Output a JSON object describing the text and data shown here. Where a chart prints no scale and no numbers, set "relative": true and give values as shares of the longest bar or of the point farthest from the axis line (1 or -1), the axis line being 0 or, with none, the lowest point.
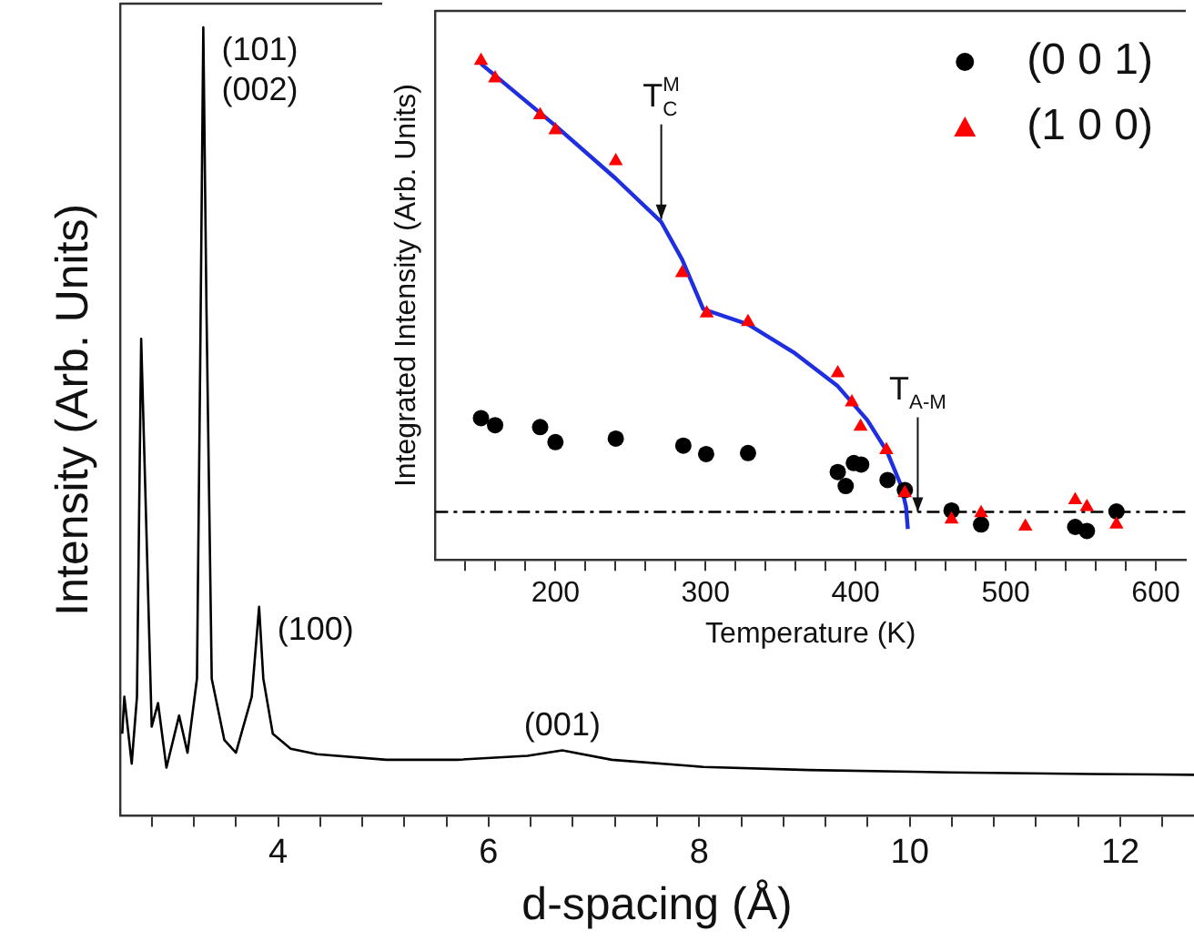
{
  "chart_data": [
    {
      "type": "line",
      "xlabel": "d-spacing (Å)",
      "ylabel": "Intensity (Arb. Units)",
      "relative": true,
      "x": [
        2.52,
        2.54,
        2.61,
        2.66,
        2.7,
        2.74,
        2.8,
        2.86,
        2.94,
        3.06,
        3.14,
        3.23,
        3.26,
        3.29,
        3.32,
        3.37,
        3.49,
        3.6,
        3.75,
        3.82,
        3.86,
        3.95,
        4.12,
        4.37,
        5.03,
        5.7,
        6.37,
        6.7,
        7.17,
        8.04,
        9.04,
        10.38,
        11.71,
        12.7
      ],
      "series": [
        {
          "color": "#000000",
          "values": [
            0.104,
            0.151,
            0.066,
            0.151,
            0.605,
            0.409,
            0.113,
            0.143,
            0.061,
            0.127,
            0.08,
            0.174,
            0.566,
            1.0,
            0.644,
            0.174,
            0.096,
            0.08,
            0.151,
            0.265,
            0.174,
            0.104,
            0.085,
            0.078,
            0.071,
            0.071,
            0.076,
            0.083,
            0.071,
            0.062,
            0.058,
            0.055,
            0.053,
            0.052
          ]
        }
      ],
      "xlim": [
        2.5,
        12.7
      ],
      "xticks": [
        {
          "value": 2.8,
          "label": null
        },
        {
          "value": 3.2,
          "label": null
        },
        {
          "value": 3.6,
          "label": null
        },
        4,
        {
          "value": 4.4,
          "label": null
        },
        {
          "value": 4.8,
          "label": null
        },
        {
          "value": 5.2,
          "label": null
        },
        {
          "value": 5.6,
          "label": null
        },
        6,
        {
          "value": 6.4,
          "label": null
        },
        {
          "value": 6.8,
          "label": null
        },
        {
          "value": 7.2,
          "label": null
        },
        {
          "value": 7.6,
          "label": null
        },
        8,
        {
          "value": 8.4,
          "label": null
        },
        {
          "value": 8.8,
          "label": null
        },
        {
          "value": 9.2,
          "label": null
        },
        {
          "value": 9.6,
          "label": null
        },
        10,
        {
          "value": 10.4,
          "label": null
        },
        {
          "value": 10.8,
          "label": null
        },
        {
          "value": 11.2,
          "label": null
        },
        {
          "value": 11.6,
          "label": null
        },
        12,
        {
          "value": 12.4,
          "label": null
        }
      ],
      "annotations": [
        {
          "text": "(101)\n(002)",
          "x": 3.29,
          "y": 1.0
        },
        {
          "text": "(100)",
          "x": 3.82,
          "y": 0.265
        },
        {
          "text": "(001)",
          "x": 6.7,
          "y": 0.083
        }
      ]
    },
    {
      "type": "scatter",
      "xlabel": "Temperature (K)",
      "ylabel": "Integrated Intensity (Arb. Units)",
      "relative": true,
      "legend": "top right",
      "series": [
        {
          "name": "(0 0 1)",
          "color": "#000000",
          "marker": "circle",
          "x": [
            150.4,
            159.8,
            189.8,
            200,
            240.2,
            285.2,
            300.4,
            328.3,
            388.1,
            393.4,
            398.8,
            403.7,
            421.3,
            432.8,
            463.9,
            483.6,
            546.3,
            554.1,
            573.8
          ],
          "values": [
            0.284,
            0.27,
            0.266,
            0.236,
            0.243,
            0.229,
            0.212,
            0.214,
            0.176,
            0.148,
            0.194,
            0.191,
            0.16,
            0.14,
            0.099,
            0.071,
            0.066,
            0.058,
            0.097
          ]
        },
        {
          "name": "(1 0 0)",
          "color": "#ff0000",
          "marker": "triangle",
          "x": [
            150.4,
            159.8,
            189.8,
            200,
            240.2,
            284.4,
            300.8,
            328.3,
            388.1,
            397.5,
            403.3,
            420.5,
            432.8,
            463.9,
            483.6,
            513.1,
            546.3,
            554.1,
            573.8
          ],
          "values": [
            1.0,
            0.965,
            0.891,
            0.861,
            0.799,
            0.575,
            0.494,
            0.477,
            0.374,
            0.316,
            0.267,
            0.22,
            0.134,
            0.081,
            0.094,
            0.067,
            0.12,
            0.106,
            0.071
          ]
        },
        {
          "type": "line",
          "color": "#1f2fe0",
          "x": [
            150.4,
            200,
            240.2,
            270.5,
            284.4,
            298.4,
            300.8,
            328.3,
            358.6,
            388.1,
            407.8,
            420.9,
            430.3,
            433.6,
            434.8
          ],
          "values": [
            0.994,
            0.87,
            0.764,
            0.677,
            0.602,
            0.503,
            0.5,
            0.472,
            0.416,
            0.348,
            0.28,
            0.217,
            0.149,
            0.106,
            0.062
          ]
        }
      ],
      "xlim": [
        120,
        620
      ],
      "xticks": [
        {
          "value": 140,
          "label": null
        },
        {
          "value": 160,
          "label": null
        },
        {
          "value": 180,
          "label": null
        },
        200,
        {
          "value": 220,
          "label": null
        },
        {
          "value": 240,
          "label": null
        },
        {
          "value": 260,
          "label": null
        },
        {
          "value": 280,
          "label": null
        },
        300,
        {
          "value": 320,
          "label": null
        },
        {
          "value": 340,
          "label": null
        },
        {
          "value": 360,
          "label": null
        },
        {
          "value": 380,
          "label": null
        },
        400,
        {
          "value": 420,
          "label": null
        },
        {
          "value": 440,
          "label": null
        },
        {
          "value": 460,
          "label": null
        },
        {
          "value": 480,
          "label": null
        },
        500,
        {
          "value": 520,
          "label": null
        },
        {
          "value": 540,
          "label": null
        },
        {
          "value": 560,
          "label": null
        },
        {
          "value": 580,
          "label": null
        },
        600
      ],
      "ref_lines": [
        {
          "axis": "y",
          "value": 0.096,
          "color": "#000000",
          "line_style": "dashed"
        }
      ],
      "annotations": [
        {
          "text": "T$_{C}$$^{M}$",
          "x": 270.5,
          "y": 0.683
        },
        {
          "text": "T$_{A-M}$",
          "x": 441.4,
          "y": 0.096
        }
      ]
    }
  ]
}
